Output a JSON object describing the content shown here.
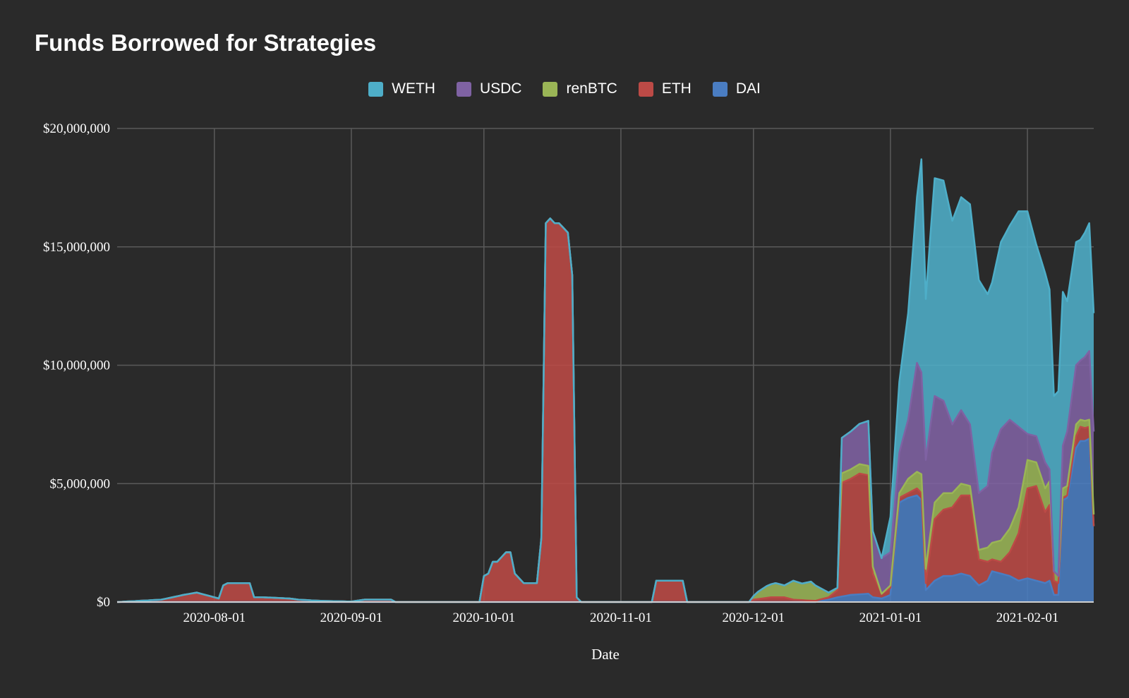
{
  "chart_data": {
    "type": "area",
    "stacked": true,
    "title": "Funds Borrowed for Strategies",
    "xlabel": "Date",
    "ylabel": "",
    "x_range": [
      "2020-07-10",
      "2021-02-16"
    ],
    "ylim": [
      0,
      20000000
    ],
    "y_ticks": [
      {
        "value": 0,
        "label": "$0"
      },
      {
        "value": 5000000,
        "label": "$5,000,000"
      },
      {
        "value": 10000000,
        "label": "$10,000,000"
      },
      {
        "value": 15000000,
        "label": "$15,000,000"
      },
      {
        "value": 20000000,
        "label": "$20,000,000"
      }
    ],
    "x_ticks": [
      {
        "date": "2020-08-01",
        "label": "2020-08-01"
      },
      {
        "date": "2020-09-01",
        "label": "2020-09-01"
      },
      {
        "date": "2020-10-01",
        "label": "2020-10-01"
      },
      {
        "date": "2020-11-01",
        "label": "2020-11-01"
      },
      {
        "date": "2020-12-01",
        "label": "2020-12-01"
      },
      {
        "date": "2021-01-01",
        "label": "2021-01-01"
      },
      {
        "date": "2021-02-01",
        "label": "2021-02-01"
      }
    ],
    "legend": [
      "WETH",
      "USDC",
      "renBTC",
      "ETH",
      "DAI"
    ],
    "legend_position": "top-center",
    "grid": true,
    "stack_order_bottom_to_top": [
      "DAI",
      "ETH",
      "renBTC",
      "USDC",
      "WETH"
    ],
    "series": [
      {
        "name": "DAI",
        "color": "#4a7dc2",
        "points": [
          [
            "2020-12-15",
            0
          ],
          [
            "2020-12-18",
            100000
          ],
          [
            "2020-12-20",
            200000
          ],
          [
            "2020-12-23",
            300000
          ],
          [
            "2020-12-27",
            350000
          ],
          [
            "2020-12-28",
            200000
          ],
          [
            "2020-12-30",
            150000
          ],
          [
            "2021-01-01",
            300000
          ],
          [
            "2021-01-03",
            4200000
          ],
          [
            "2021-01-05",
            4400000
          ],
          [
            "2021-01-07",
            4500000
          ],
          [
            "2021-01-08",
            4300000
          ],
          [
            "2021-01-09",
            500000
          ],
          [
            "2021-01-11",
            900000
          ],
          [
            "2021-01-13",
            1100000
          ],
          [
            "2021-01-15",
            1100000
          ],
          [
            "2021-01-17",
            1200000
          ],
          [
            "2021-01-19",
            1100000
          ],
          [
            "2021-01-21",
            700000
          ],
          [
            "2021-01-23",
            900000
          ],
          [
            "2021-01-24",
            1300000
          ],
          [
            "2021-01-26",
            1200000
          ],
          [
            "2021-01-28",
            1100000
          ],
          [
            "2021-01-30",
            900000
          ],
          [
            "2021-02-01",
            1000000
          ],
          [
            "2021-02-03",
            900000
          ],
          [
            "2021-02-05",
            800000
          ],
          [
            "2021-02-06",
            900000
          ],
          [
            "2021-02-07",
            300000
          ],
          [
            "2021-02-08",
            300000
          ],
          [
            "2021-02-09",
            4300000
          ],
          [
            "2021-02-10",
            4400000
          ],
          [
            "2021-02-12",
            6500000
          ],
          [
            "2021-02-13",
            6800000
          ],
          [
            "2021-02-14",
            6800000
          ],
          [
            "2021-02-15",
            6900000
          ],
          [
            "2021-02-16",
            3200000
          ]
        ]
      },
      {
        "name": "ETH",
        "color": "#bc4a46",
        "points": [
          [
            "2020-07-10",
            0
          ],
          [
            "2020-07-15",
            50000
          ],
          [
            "2020-07-20",
            100000
          ],
          [
            "2020-07-25",
            300000
          ],
          [
            "2020-07-28",
            400000
          ],
          [
            "2020-07-30",
            300000
          ],
          [
            "2020-08-02",
            150000
          ],
          [
            "2020-08-03",
            700000
          ],
          [
            "2020-08-04",
            800000
          ],
          [
            "2020-08-06",
            800000
          ],
          [
            "2020-08-09",
            800000
          ],
          [
            "2020-08-10",
            200000
          ],
          [
            "2020-08-12",
            200000
          ],
          [
            "2020-08-18",
            150000
          ],
          [
            "2020-08-20",
            100000
          ],
          [
            "2020-08-25",
            50000
          ],
          [
            "2020-09-01",
            20000
          ],
          [
            "2020-09-04",
            100000
          ],
          [
            "2020-09-10",
            100000
          ],
          [
            "2020-09-11",
            0
          ],
          [
            "2020-09-30",
            0
          ],
          [
            "2020-10-01",
            1100000
          ],
          [
            "2020-10-02",
            1200000
          ],
          [
            "2020-10-03",
            1700000
          ],
          [
            "2020-10-04",
            1700000
          ],
          [
            "2020-10-05",
            1900000
          ],
          [
            "2020-10-06",
            2100000
          ],
          [
            "2020-10-07",
            2100000
          ],
          [
            "2020-10-08",
            1200000
          ],
          [
            "2020-10-10",
            800000
          ],
          [
            "2020-10-13",
            800000
          ],
          [
            "2020-10-14",
            2700000
          ],
          [
            "2020-10-15",
            16000000
          ],
          [
            "2020-10-16",
            16200000
          ],
          [
            "2020-10-17",
            16000000
          ],
          [
            "2020-10-18",
            16000000
          ],
          [
            "2020-10-19",
            15800000
          ],
          [
            "2020-10-20",
            15600000
          ],
          [
            "2020-10-21",
            13800000
          ],
          [
            "2020-10-22",
            200000
          ],
          [
            "2020-10-23",
            0
          ],
          [
            "2020-11-08",
            0
          ],
          [
            "2020-11-09",
            900000
          ],
          [
            "2020-11-15",
            900000
          ],
          [
            "2020-11-16",
            0
          ],
          [
            "2020-11-30",
            0
          ],
          [
            "2020-12-01",
            100000
          ],
          [
            "2020-12-05",
            200000
          ],
          [
            "2020-12-08",
            200000
          ],
          [
            "2020-12-10",
            100000
          ],
          [
            "2020-12-15",
            50000
          ],
          [
            "2020-12-18",
            100000
          ],
          [
            "2020-12-20",
            300000
          ],
          [
            "2020-12-21",
            4800000
          ],
          [
            "2020-12-23",
            4900000
          ],
          [
            "2020-12-25",
            5100000
          ],
          [
            "2020-12-27",
            5000000
          ],
          [
            "2020-12-28",
            1000000
          ],
          [
            "2020-12-30",
            200000
          ],
          [
            "2021-01-01",
            300000
          ],
          [
            "2021-01-03",
            200000
          ],
          [
            "2021-01-05",
            200000
          ],
          [
            "2021-01-07",
            300000
          ],
          [
            "2021-01-08",
            300000
          ],
          [
            "2021-01-09",
            300000
          ],
          [
            "2021-01-10",
            1500000
          ],
          [
            "2021-01-11",
            2600000
          ],
          [
            "2021-01-13",
            2800000
          ],
          [
            "2021-01-15",
            2900000
          ],
          [
            "2021-01-17",
            3300000
          ],
          [
            "2021-01-19",
            3400000
          ],
          [
            "2021-01-21",
            1100000
          ],
          [
            "2021-01-23",
            800000
          ],
          [
            "2021-01-24",
            500000
          ],
          [
            "2021-01-26",
            500000
          ],
          [
            "2021-01-28",
            1000000
          ],
          [
            "2021-01-30",
            2000000
          ],
          [
            "2021-02-01",
            3800000
          ],
          [
            "2021-02-03",
            4000000
          ],
          [
            "2021-02-05",
            3000000
          ],
          [
            "2021-02-06",
            3200000
          ],
          [
            "2021-02-07",
            600000
          ],
          [
            "2021-02-08",
            500000
          ],
          [
            "2021-02-09",
            100000
          ],
          [
            "2021-02-10",
            100000
          ],
          [
            "2021-02-12",
            500000
          ],
          [
            "2021-02-13",
            600000
          ],
          [
            "2021-02-15",
            500000
          ],
          [
            "2021-02-16",
            0
          ]
        ]
      },
      {
        "name": "renBTC",
        "color": "#9ab556",
        "points": [
          [
            "2020-11-30",
            0
          ],
          [
            "2020-12-02",
            300000
          ],
          [
            "2020-12-04",
            500000
          ],
          [
            "2020-12-06",
            600000
          ],
          [
            "2020-12-08",
            500000
          ],
          [
            "2020-12-10",
            800000
          ],
          [
            "2020-12-12",
            700000
          ],
          [
            "2020-12-14",
            800000
          ],
          [
            "2020-12-16",
            500000
          ],
          [
            "2020-12-18",
            200000
          ],
          [
            "2020-12-20",
            100000
          ],
          [
            "2020-12-21",
            400000
          ],
          [
            "2020-12-23",
            400000
          ],
          [
            "2020-12-25",
            400000
          ],
          [
            "2020-12-27",
            400000
          ],
          [
            "2020-12-28",
            300000
          ],
          [
            "2020-12-30",
            0
          ],
          [
            "2021-01-03",
            200000
          ],
          [
            "2021-01-05",
            600000
          ],
          [
            "2021-01-07",
            700000
          ],
          [
            "2021-01-08",
            800000
          ],
          [
            "2021-01-09",
            600000
          ],
          [
            "2021-01-11",
            700000
          ],
          [
            "2021-01-13",
            700000
          ],
          [
            "2021-01-15",
            600000
          ],
          [
            "2021-01-17",
            500000
          ],
          [
            "2021-01-19",
            400000
          ],
          [
            "2021-01-21",
            400000
          ],
          [
            "2021-01-23",
            600000
          ],
          [
            "2021-01-24",
            700000
          ],
          [
            "2021-01-26",
            900000
          ],
          [
            "2021-01-28",
            1000000
          ],
          [
            "2021-01-30",
            1100000
          ],
          [
            "2021-02-01",
            1200000
          ],
          [
            "2021-02-03",
            1000000
          ],
          [
            "2021-02-05",
            1000000
          ],
          [
            "2021-02-06",
            1000000
          ],
          [
            "2021-02-07",
            400000
          ],
          [
            "2021-02-08",
            300000
          ],
          [
            "2021-02-09",
            400000
          ],
          [
            "2021-02-10",
            400000
          ],
          [
            "2021-02-12",
            500000
          ],
          [
            "2021-02-13",
            300000
          ],
          [
            "2021-02-15",
            300000
          ],
          [
            "2021-02-16",
            500000
          ]
        ]
      },
      {
        "name": "USDC",
        "color": "#7f62a3",
        "points": [
          [
            "2020-12-20",
            0
          ],
          [
            "2020-12-21",
            1500000
          ],
          [
            "2020-12-23",
            1600000
          ],
          [
            "2020-12-25",
            1700000
          ],
          [
            "2020-12-27",
            1900000
          ],
          [
            "2020-12-28",
            1500000
          ],
          [
            "2020-12-30",
            1500000
          ],
          [
            "2021-01-01",
            1400000
          ],
          [
            "2021-01-03",
            1700000
          ],
          [
            "2021-01-05",
            2500000
          ],
          [
            "2021-01-07",
            4600000
          ],
          [
            "2021-01-08",
            4300000
          ],
          [
            "2021-01-09",
            4600000
          ],
          [
            "2021-01-11",
            4500000
          ],
          [
            "2021-01-13",
            3900000
          ],
          [
            "2021-01-15",
            2900000
          ],
          [
            "2021-01-17",
            3100000
          ],
          [
            "2021-01-19",
            2600000
          ],
          [
            "2021-01-21",
            2400000
          ],
          [
            "2021-01-23",
            2600000
          ],
          [
            "2021-01-24",
            3800000
          ],
          [
            "2021-01-26",
            4700000
          ],
          [
            "2021-01-28",
            4600000
          ],
          [
            "2021-01-30",
            3400000
          ],
          [
            "2021-02-01",
            1100000
          ],
          [
            "2021-02-03",
            1100000
          ],
          [
            "2021-02-05",
            1100000
          ],
          [
            "2021-02-06",
            500000
          ],
          [
            "2021-02-07",
            0
          ],
          [
            "2021-02-08",
            0
          ],
          [
            "2021-02-09",
            1800000
          ],
          [
            "2021-02-10",
            2300000
          ],
          [
            "2021-02-12",
            2500000
          ],
          [
            "2021-02-13",
            2500000
          ],
          [
            "2021-02-15",
            2900000
          ],
          [
            "2021-02-16",
            3500000
          ]
        ]
      },
      {
        "name": "WETH",
        "color": "#4eaec8",
        "points": [
          [
            "2020-12-30",
            0
          ],
          [
            "2021-01-01",
            1500000
          ],
          [
            "2021-01-03",
            3000000
          ],
          [
            "2021-01-05",
            4500000
          ],
          [
            "2021-01-07",
            7000000
          ],
          [
            "2021-01-08",
            9000000
          ],
          [
            "2021-01-09",
            6800000
          ],
          [
            "2021-01-11",
            9200000
          ],
          [
            "2021-01-13",
            9300000
          ],
          [
            "2021-01-15",
            8600000
          ],
          [
            "2021-01-17",
            9000000
          ],
          [
            "2021-01-19",
            9300000
          ],
          [
            "2021-01-21",
            9000000
          ],
          [
            "2021-01-23",
            8100000
          ],
          [
            "2021-01-24",
            7200000
          ],
          [
            "2021-01-26",
            7900000
          ],
          [
            "2021-01-28",
            8200000
          ],
          [
            "2021-01-30",
            9100000
          ],
          [
            "2021-02-01",
            9400000
          ],
          [
            "2021-02-03",
            8100000
          ],
          [
            "2021-02-05",
            8000000
          ],
          [
            "2021-02-06",
            7600000
          ],
          [
            "2021-02-07",
            7400000
          ],
          [
            "2021-02-08",
            7800000
          ],
          [
            "2021-02-09",
            6500000
          ],
          [
            "2021-02-10",
            5500000
          ],
          [
            "2021-02-12",
            5200000
          ],
          [
            "2021-02-13",
            5100000
          ],
          [
            "2021-02-15",
            5400000
          ],
          [
            "2021-02-16",
            5000000
          ]
        ]
      }
    ]
  }
}
